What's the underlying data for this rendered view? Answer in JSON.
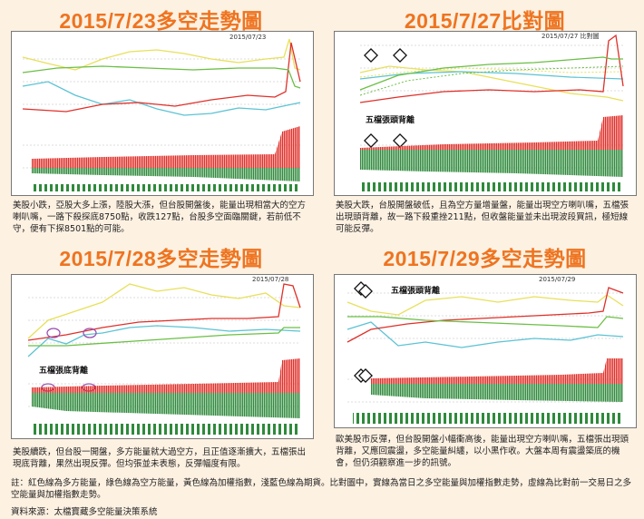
{
  "panels": [
    {
      "title": "2015/7/23多空走勢圖",
      "chart_label": "2015/07/23",
      "description": "美股小跌，亞股大多上漲，陸股大漲，但台股開盤後，能量出現相當大的空方喇叭嘴，一路下殺探底8750點，收跌127點，台股多空面臨關鍵，若前低不守，便有下探8501點的可能。"
    },
    {
      "title": "2015/7/27比對圖",
      "chart_label": "2015/07/27 比對圖",
      "annotation": "五檔張頭背離",
      "description": "美股大跌，台股開盤破低，且為空方量增量盤，能量出現空方喇叭嘴，五檔張出現頭背離，故一路下殺重挫211點，但收盤能量並未出現波段買訊，極短線可能反彈。"
    },
    {
      "title": "2015/7/28多空走勢圖",
      "chart_label": "2015/07/28",
      "annotation": "五檔張底背離",
      "description": "美股續跌，但台股一開盤，多方能量就大過空方，且正值逐漸擴大，五檔張出現底背離，果然出現反彈。但均張並未表態，反彈幅度有限。"
    },
    {
      "title": "2015/7/29多空走勢圖",
      "chart_label": "2015/07/29",
      "annotation": "五檔張頭背離",
      "description": "歐美股市反彈，但台股開盤小幅衝高後，能量出現空方喇叭嘴，五檔張出現頭背離，又應回震盪，多空能量糾纏，以小黑作收。大盤本周有震盪築底的機會，但仍須觀察進一步的訊號。"
    }
  ],
  "note": "註：紅色線為多方能量，綠色線為空方能量，黃色線為加權指數，淺藍色線為期貨。比對圖中，實線為當日之多空能量與加權指數走勢，虛線為比對前一交易日之多空能量與加權指數走勢。",
  "source": "資料來源：太檔寶藏多空能量決策系統"
}
